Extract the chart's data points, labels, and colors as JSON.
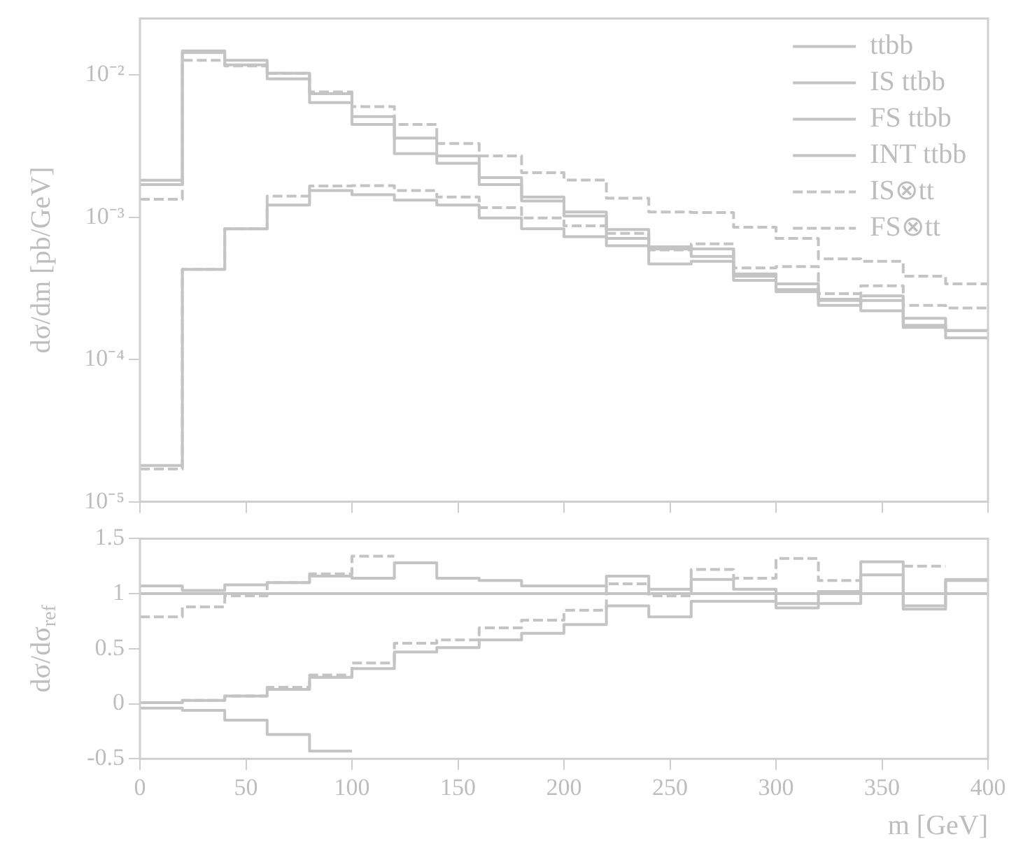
{
  "chart_data": [
    {
      "type": "step",
      "ylabel": "dσ/dm [pb/GeV]",
      "log": "y",
      "legend": "top right",
      "tick_labels": "y",
      "grid": false,
      "marker": "none",
      "x": [
        0,
        20,
        40,
        60,
        80,
        100,
        120,
        140,
        160,
        180,
        200,
        220,
        240,
        260,
        280,
        300,
        320,
        340,
        360,
        380,
        400
      ],
      "xlim": [
        0,
        400
      ],
      "xticks": [
        0,
        50,
        100,
        150,
        200,
        250,
        300,
        350,
        400
      ],
      "ylim": [
        1e-05,
        0.025
      ],
      "yticks": [
        {
          "value": 1e-05,
          "label": "10⁻⁵"
        },
        {
          "value": 0.0001,
          "label": "10⁻⁴"
        },
        {
          "value": 0.001,
          "label": "10⁻³"
        },
        {
          "value": 0.01,
          "label": "10⁻²"
        }
      ],
      "series": [
        {
          "name": "ttbb",
          "color": "#c4c4c4",
          "line_style": "solid",
          "values": [
            0.0017,
            0.0144,
            0.0118,
            0.0094,
            0.0064,
            0.0045,
            0.0028,
            0.0024,
            0.0017,
            0.0013,
            0.00102,
            0.00071,
            0.0006,
            0.00053,
            0.000385,
            0.00034,
            0.00026,
            0.00022,
            0.000195,
            0.000142,
            0.000142
          ]
        },
        {
          "name": "IS ttbb",
          "color": "#c4c4c4",
          "line_style": "solid",
          "values": [
            0.00182,
            0.0148,
            0.0127,
            0.0103,
            0.0074,
            0.0051,
            0.0036,
            0.0027,
            0.0019,
            0.00139,
            0.00109,
            0.00082,
            0.00062,
            0.0006,
            0.0004,
            0.00031,
            0.000265,
            0.00028,
            0.000174,
            0.00016,
            0.00016
          ]
        },
        {
          "name": "FS ttbb",
          "color": "#c4c4c4",
          "line_style": "solid",
          "values": [
            1.8e-05,
            0.00043,
            0.00083,
            0.00122,
            0.00154,
            0.00144,
            0.00132,
            0.00122,
            0.00099,
            0.00083,
            0.00073,
            0.00063,
            0.00047,
            0.00049,
            0.00036,
            0.0003,
            0.00024,
            0.00026,
            0.000168,
            0.00016,
            0.00016
          ]
        },
        {
          "name": "INT ttbb",
          "color": "#c4c4c4",
          "line_style": "solid",
          "values": [
            null,
            null,
            null,
            null,
            null,
            null,
            null,
            null,
            null,
            null,
            null,
            null,
            null,
            null,
            null,
            null,
            null,
            null,
            null,
            null,
            null
          ]
        },
        {
          "name": "IS⊗tt",
          "color": "#c4c4c4",
          "line_style": "dashed",
          "values": [
            0.00134,
            0.0127,
            0.0116,
            0.0103,
            0.0076,
            0.006,
            0.0045,
            0.0033,
            0.0027,
            0.00206,
            0.00183,
            0.00136,
            0.00109,
            0.00108,
            0.00085,
            0.00071,
            0.00051,
            0.00049,
            0.000385,
            0.00034,
            0.00034
          ]
        },
        {
          "name": "FS⊗tt",
          "color": "#c4c4c4",
          "line_style": "dashed",
          "values": [
            1.7e-05,
            0.00043,
            0.00083,
            0.00141,
            0.00166,
            0.00167,
            0.00154,
            0.00139,
            0.00117,
            0.00099,
            0.00087,
            0.00077,
            0.00059,
            0.00065,
            0.00044,
            0.00045,
            0.00029,
            0.00033,
            0.00024,
            0.00023,
            0.00023
          ]
        }
      ]
    },
    {
      "type": "step",
      "xlabel": "m [GeV]",
      "ylabel": "dσ/dσ$_{ref}$",
      "legend": false,
      "grid": false,
      "marker": "none",
      "x": [
        0,
        20,
        40,
        60,
        80,
        100,
        120,
        140,
        160,
        180,
        200,
        220,
        240,
        260,
        280,
        300,
        320,
        340,
        360,
        380,
        400
      ],
      "xlim": [
        0,
        400
      ],
      "xticks": [
        0,
        50,
        100,
        150,
        200,
        250,
        300,
        350,
        400
      ],
      "ylim": [
        -0.5,
        1.5
      ],
      "yticks": [
        -0.5,
        0,
        0.5,
        1,
        1.5
      ],
      "series": [
        {
          "color": "#c4c4c4",
          "line_style": "solid",
          "values": [
            1,
            1,
            1,
            1,
            1,
            1,
            1,
            1,
            1,
            1,
            1,
            1,
            1,
            1,
            1,
            1,
            1,
            1,
            1,
            1,
            1
          ]
        },
        {
          "color": "#c4c4c4",
          "line_style": "solid",
          "values": [
            1.07,
            1.03,
            1.08,
            1.1,
            1.16,
            1.14,
            1.28,
            1.14,
            1.12,
            1.07,
            1.07,
            1.16,
            1.04,
            1.13,
            1.04,
            0.91,
            1.02,
            1.29,
            0.89,
            1.13,
            1.13
          ]
        },
        {
          "color": "#c4c4c4",
          "line_style": "solid",
          "values": [
            0.01,
            0.03,
            0.07,
            0.13,
            0.24,
            0.32,
            0.47,
            0.51,
            0.58,
            0.64,
            0.72,
            0.89,
            0.79,
            0.93,
            0.93,
            0.87,
            0.91,
            1.17,
            0.86,
            1.12,
            1.12
          ]
        },
        {
          "color": "#c4c4c4",
          "line_style": "solid",
          "values": [
            -0.04,
            -0.06,
            -0.15,
            -0.28,
            -0.43,
            -0.43,
            null,
            null,
            null,
            null,
            null,
            null,
            null,
            null,
            null,
            null,
            null,
            null,
            null,
            null,
            null
          ]
        },
        {
          "color": "#c4c4c4",
          "line_style": "dashed",
          "values": [
            0.79,
            0.88,
            0.98,
            1.1,
            1.18,
            1.34,
            1.34,
            null,
            null,
            null,
            null,
            null,
            null,
            null,
            null,
            null,
            null,
            null,
            null,
            null,
            null
          ]
        },
        {
          "color": "#c4c4c4",
          "line_style": "dashed",
          "x": [
            0,
            20,
            40,
            60,
            80,
            100,
            120,
            140,
            160,
            180,
            200,
            220,
            240,
            260,
            280,
            300,
            320,
            340
          ],
          "values": [
            0.01,
            0.03,
            0.07,
            0.15,
            0.26,
            0.37,
            0.55,
            0.58,
            0.69,
            0.76,
            0.85,
            1.09,
            0.98,
            1.22,
            1.14,
            1.32,
            1.12,
            1.12
          ]
        },
        {
          "color": "#c4c4c4",
          "line_style": "dashed",
          "x": [
            360,
            380
          ],
          "values": [
            1.25,
            1.25
          ]
        }
      ]
    }
  ]
}
